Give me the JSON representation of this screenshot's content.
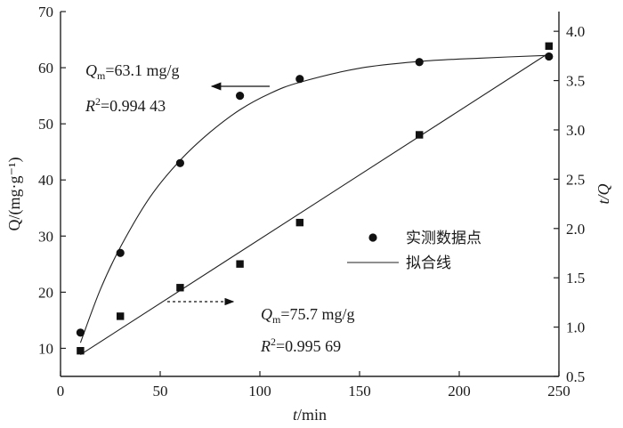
{
  "chart_data": {
    "type": "scatter",
    "xlabel_italic": "t",
    "xlabel_unit": "/min",
    "ylabel_left": "Q/(mg·g⁻¹)",
    "ylabel_right": "t/Q",
    "xlim": [
      0,
      250
    ],
    "ylim_left": [
      5,
      70
    ],
    "ylim_right": [
      0.5,
      4.2
    ],
    "x_ticks": [
      0,
      50,
      100,
      150,
      200,
      250
    ],
    "y_left_ticks": [
      10,
      20,
      30,
      40,
      50,
      60,
      70
    ],
    "y_right_ticks": [
      "0.5",
      "1.0",
      "1.5",
      "2.0",
      "2.5",
      "3.0",
      "3.5",
      "4.0"
    ],
    "grid": false,
    "series": [
      {
        "name": "实测数据点",
        "axis": "left",
        "marker": "circle",
        "x": [
          10,
          30,
          60,
          90,
          120,
          180,
          245
        ],
        "y": [
          12.8,
          27.0,
          43.0,
          55.0,
          58.0,
          61.0,
          62.0
        ]
      },
      {
        "axis": "right",
        "marker": "square",
        "x": [
          10,
          30,
          60,
          90,
          120,
          180,
          245
        ],
        "y": [
          0.76,
          1.11,
          1.4,
          1.64,
          2.06,
          2.95,
          3.85
        ]
      },
      {
        "name": "拟合线",
        "axis": "left",
        "style": "line",
        "x": [
          10,
          20,
          30,
          45,
          60,
          75,
          90,
          105,
          120,
          150,
          180,
          210,
          245
        ],
        "y": [
          11.0,
          20.5,
          28.0,
          37.0,
          43.5,
          48.5,
          52.5,
          55.4,
          57.4,
          59.9,
          61.1,
          61.7,
          62.2
        ]
      },
      {
        "axis": "right",
        "style": "line",
        "x": [
          10,
          245
        ],
        "y": [
          0.72,
          3.78
        ]
      }
    ],
    "annotations": [
      {
        "id": "top",
        "q_text": "Q",
        "q_sub": "m",
        "q_value": "=63.1 mg/g",
        "r_text": "R",
        "r_sup": "2",
        "r_value": "=0.994 43",
        "arrow": "left-solid"
      },
      {
        "id": "bottom",
        "q_text": "Q",
        "q_sub": "m",
        "q_value": "=75.7 mg/g",
        "r_text": "R",
        "r_sup": "2",
        "r_value": "=0.995 69",
        "arrow": "right-dashed"
      }
    ],
    "legend": {
      "position": "center-right",
      "items": [
        {
          "label": "实测数据点",
          "marker": "circle"
        },
        {
          "label": "拟合线",
          "marker": "line"
        }
      ]
    }
  }
}
